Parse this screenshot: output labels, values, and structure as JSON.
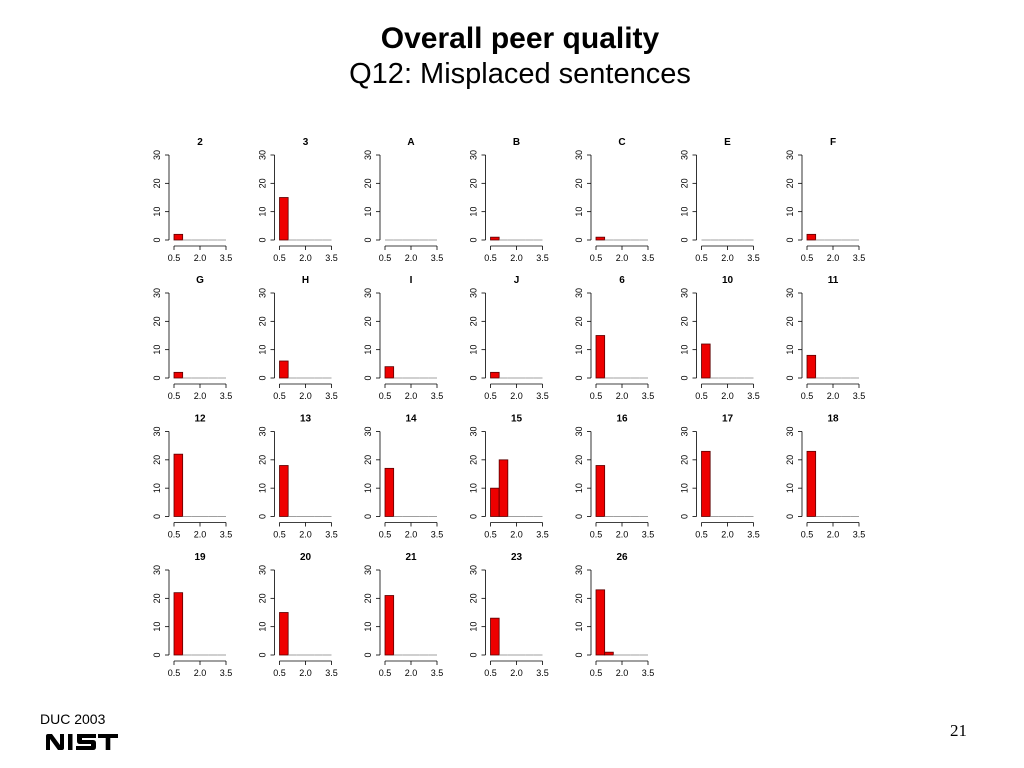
{
  "title": "Overall peer quality",
  "subtitle": "Q12: Misplaced sentences",
  "footer": {
    "left": "DUC 2003",
    "page": "21"
  },
  "colors": {
    "bar": "#ee0000",
    "bar_edge": "#5a0000",
    "axis": "#000000",
    "baseline": "#888888"
  },
  "chart_data": [
    {
      "type": "bar",
      "title": "2",
      "x_ticks": [
        "0.5",
        "2.0",
        "3.5"
      ],
      "y_ticks": [
        "0",
        "10",
        "20",
        "30"
      ],
      "xlim": [
        0.5,
        3.5
      ],
      "ylim": [
        0,
        30
      ],
      "bins": [
        [
          0.5,
          1.0
        ],
        [
          1.0,
          1.5
        ],
        [
          1.5,
          2.0
        ],
        [
          2.0,
          2.5
        ],
        [
          2.5,
          3.0
        ],
        [
          3.0,
          3.5
        ]
      ],
      "values": [
        2,
        0,
        0,
        0,
        0,
        0
      ]
    },
    {
      "type": "bar",
      "title": "3",
      "x_ticks": [
        "0.5",
        "2.0",
        "3.5"
      ],
      "y_ticks": [
        "0",
        "10",
        "20",
        "30"
      ],
      "xlim": [
        0.5,
        3.5
      ],
      "ylim": [
        0,
        30
      ],
      "bins": [
        [
          0.5,
          1.0
        ],
        [
          1.0,
          1.5
        ],
        [
          1.5,
          2.0
        ],
        [
          2.0,
          2.5
        ],
        [
          2.5,
          3.0
        ],
        [
          3.0,
          3.5
        ]
      ],
      "values": [
        15,
        0,
        0,
        0,
        0,
        0
      ]
    },
    {
      "type": "bar",
      "title": "A",
      "x_ticks": [
        "0.5",
        "2.0",
        "3.5"
      ],
      "y_ticks": [
        "0",
        "10",
        "20",
        "30"
      ],
      "xlim": [
        0.5,
        3.5
      ],
      "ylim": [
        0,
        30
      ],
      "bins": [
        [
          0.5,
          1.0
        ],
        [
          1.0,
          1.5
        ],
        [
          1.5,
          2.0
        ],
        [
          2.0,
          2.5
        ],
        [
          2.5,
          3.0
        ],
        [
          3.0,
          3.5
        ]
      ],
      "values": [
        0,
        0,
        0,
        0,
        0,
        0
      ]
    },
    {
      "type": "bar",
      "title": "B",
      "x_ticks": [
        "0.5",
        "2.0",
        "3.5"
      ],
      "y_ticks": [
        "0",
        "10",
        "20",
        "30"
      ],
      "xlim": [
        0.5,
        3.5
      ],
      "ylim": [
        0,
        30
      ],
      "bins": [
        [
          0.5,
          1.0
        ],
        [
          1.0,
          1.5
        ],
        [
          1.5,
          2.0
        ],
        [
          2.0,
          2.5
        ],
        [
          2.5,
          3.0
        ],
        [
          3.0,
          3.5
        ]
      ],
      "values": [
        1,
        0,
        0,
        0,
        0,
        0
      ]
    },
    {
      "type": "bar",
      "title": "C",
      "x_ticks": [
        "0.5",
        "2.0",
        "3.5"
      ],
      "y_ticks": [
        "0",
        "10",
        "20",
        "30"
      ],
      "xlim": [
        0.5,
        3.5
      ],
      "ylim": [
        0,
        30
      ],
      "bins": [
        [
          0.5,
          1.0
        ],
        [
          1.0,
          1.5
        ],
        [
          1.5,
          2.0
        ],
        [
          2.0,
          2.5
        ],
        [
          2.5,
          3.0
        ],
        [
          3.0,
          3.5
        ]
      ],
      "values": [
        1,
        0,
        0,
        0,
        0,
        0
      ]
    },
    {
      "type": "bar",
      "title": "E",
      "x_ticks": [
        "0.5",
        "2.0",
        "3.5"
      ],
      "y_ticks": [
        "0",
        "10",
        "20",
        "30"
      ],
      "xlim": [
        0.5,
        3.5
      ],
      "ylim": [
        0,
        30
      ],
      "bins": [
        [
          0.5,
          1.0
        ],
        [
          1.0,
          1.5
        ],
        [
          1.5,
          2.0
        ],
        [
          2.0,
          2.5
        ],
        [
          2.5,
          3.0
        ],
        [
          3.0,
          3.5
        ]
      ],
      "values": [
        0,
        0,
        0,
        0,
        0,
        0
      ]
    },
    {
      "type": "bar",
      "title": "F",
      "x_ticks": [
        "0.5",
        "2.0",
        "3.5"
      ],
      "y_ticks": [
        "0",
        "10",
        "20",
        "30"
      ],
      "xlim": [
        0.5,
        3.5
      ],
      "ylim": [
        0,
        30
      ],
      "bins": [
        [
          0.5,
          1.0
        ],
        [
          1.0,
          1.5
        ],
        [
          1.5,
          2.0
        ],
        [
          2.0,
          2.5
        ],
        [
          2.5,
          3.0
        ],
        [
          3.0,
          3.5
        ]
      ],
      "values": [
        2,
        0,
        0,
        0,
        0,
        0
      ]
    },
    {
      "type": "bar",
      "title": "G",
      "x_ticks": [
        "0.5",
        "2.0",
        "3.5"
      ],
      "y_ticks": [
        "0",
        "10",
        "20",
        "30"
      ],
      "xlim": [
        0.5,
        3.5
      ],
      "ylim": [
        0,
        30
      ],
      "bins": [
        [
          0.5,
          1.0
        ],
        [
          1.0,
          1.5
        ],
        [
          1.5,
          2.0
        ],
        [
          2.0,
          2.5
        ],
        [
          2.5,
          3.0
        ],
        [
          3.0,
          3.5
        ]
      ],
      "values": [
        2,
        0,
        0,
        0,
        0,
        0
      ]
    },
    {
      "type": "bar",
      "title": "H",
      "x_ticks": [
        "0.5",
        "2.0",
        "3.5"
      ],
      "y_ticks": [
        "0",
        "10",
        "20",
        "30"
      ],
      "xlim": [
        0.5,
        3.5
      ],
      "ylim": [
        0,
        30
      ],
      "bins": [
        [
          0.5,
          1.0
        ],
        [
          1.0,
          1.5
        ],
        [
          1.5,
          2.0
        ],
        [
          2.0,
          2.5
        ],
        [
          2.5,
          3.0
        ],
        [
          3.0,
          3.5
        ]
      ],
      "values": [
        6,
        0,
        0,
        0,
        0,
        0
      ]
    },
    {
      "type": "bar",
      "title": "I",
      "x_ticks": [
        "0.5",
        "2.0",
        "3.5"
      ],
      "y_ticks": [
        "0",
        "10",
        "20",
        "30"
      ],
      "xlim": [
        0.5,
        3.5
      ],
      "ylim": [
        0,
        30
      ],
      "bins": [
        [
          0.5,
          1.0
        ],
        [
          1.0,
          1.5
        ],
        [
          1.5,
          2.0
        ],
        [
          2.0,
          2.5
        ],
        [
          2.5,
          3.0
        ],
        [
          3.0,
          3.5
        ]
      ],
      "values": [
        4,
        0,
        0,
        0,
        0,
        0
      ]
    },
    {
      "type": "bar",
      "title": "J",
      "x_ticks": [
        "0.5",
        "2.0",
        "3.5"
      ],
      "y_ticks": [
        "0",
        "10",
        "20",
        "30"
      ],
      "xlim": [
        0.5,
        3.5
      ],
      "ylim": [
        0,
        30
      ],
      "bins": [
        [
          0.5,
          1.0
        ],
        [
          1.0,
          1.5
        ],
        [
          1.5,
          2.0
        ],
        [
          2.0,
          2.5
        ],
        [
          2.5,
          3.0
        ],
        [
          3.0,
          3.5
        ]
      ],
      "values": [
        2,
        0,
        0,
        0,
        0,
        0
      ]
    },
    {
      "type": "bar",
      "title": "6",
      "x_ticks": [
        "0.5",
        "2.0",
        "3.5"
      ],
      "y_ticks": [
        "0",
        "10",
        "20",
        "30"
      ],
      "xlim": [
        0.5,
        3.5
      ],
      "ylim": [
        0,
        30
      ],
      "bins": [
        [
          0.5,
          1.0
        ],
        [
          1.0,
          1.5
        ],
        [
          1.5,
          2.0
        ],
        [
          2.0,
          2.5
        ],
        [
          2.5,
          3.0
        ],
        [
          3.0,
          3.5
        ]
      ],
      "values": [
        15,
        0,
        0,
        0,
        0,
        0
      ]
    },
    {
      "type": "bar",
      "title": "10",
      "x_ticks": [
        "0.5",
        "2.0",
        "3.5"
      ],
      "y_ticks": [
        "0",
        "10",
        "20",
        "30"
      ],
      "xlim": [
        0.5,
        3.5
      ],
      "ylim": [
        0,
        30
      ],
      "bins": [
        [
          0.5,
          1.0
        ],
        [
          1.0,
          1.5
        ],
        [
          1.5,
          2.0
        ],
        [
          2.0,
          2.5
        ],
        [
          2.5,
          3.0
        ],
        [
          3.0,
          3.5
        ]
      ],
      "values": [
        12,
        0,
        0,
        0,
        0,
        0
      ]
    },
    {
      "type": "bar",
      "title": "11",
      "x_ticks": [
        "0.5",
        "2.0",
        "3.5"
      ],
      "y_ticks": [
        "0",
        "10",
        "20",
        "30"
      ],
      "xlim": [
        0.5,
        3.5
      ],
      "ylim": [
        0,
        30
      ],
      "bins": [
        [
          0.5,
          1.0
        ],
        [
          1.0,
          1.5
        ],
        [
          1.5,
          2.0
        ],
        [
          2.0,
          2.5
        ],
        [
          2.5,
          3.0
        ],
        [
          3.0,
          3.5
        ]
      ],
      "values": [
        8,
        0,
        0,
        0,
        0,
        0
      ]
    },
    {
      "type": "bar",
      "title": "12",
      "x_ticks": [
        "0.5",
        "2.0",
        "3.5"
      ],
      "y_ticks": [
        "0",
        "10",
        "20",
        "30"
      ],
      "xlim": [
        0.5,
        3.5
      ],
      "ylim": [
        0,
        30
      ],
      "bins": [
        [
          0.5,
          1.0
        ],
        [
          1.0,
          1.5
        ],
        [
          1.5,
          2.0
        ],
        [
          2.0,
          2.5
        ],
        [
          2.5,
          3.0
        ],
        [
          3.0,
          3.5
        ]
      ],
      "values": [
        22,
        0,
        0,
        0,
        0,
        0
      ]
    },
    {
      "type": "bar",
      "title": "13",
      "x_ticks": [
        "0.5",
        "2.0",
        "3.5"
      ],
      "y_ticks": [
        "0",
        "10",
        "20",
        "30"
      ],
      "xlim": [
        0.5,
        3.5
      ],
      "ylim": [
        0,
        30
      ],
      "bins": [
        [
          0.5,
          1.0
        ],
        [
          1.0,
          1.5
        ],
        [
          1.5,
          2.0
        ],
        [
          2.0,
          2.5
        ],
        [
          2.5,
          3.0
        ],
        [
          3.0,
          3.5
        ]
      ],
      "values": [
        18,
        0,
        0,
        0,
        0,
        0
      ]
    },
    {
      "type": "bar",
      "title": "14",
      "x_ticks": [
        "0.5",
        "2.0",
        "3.5"
      ],
      "y_ticks": [
        "0",
        "10",
        "20",
        "30"
      ],
      "xlim": [
        0.5,
        3.5
      ],
      "ylim": [
        0,
        30
      ],
      "bins": [
        [
          0.5,
          1.0
        ],
        [
          1.0,
          1.5
        ],
        [
          1.5,
          2.0
        ],
        [
          2.0,
          2.5
        ],
        [
          2.5,
          3.0
        ],
        [
          3.0,
          3.5
        ]
      ],
      "values": [
        17,
        0,
        0,
        0,
        0,
        0
      ]
    },
    {
      "type": "bar",
      "title": "15",
      "x_ticks": [
        "0.5",
        "2.0",
        "3.5"
      ],
      "y_ticks": [
        "0",
        "10",
        "20",
        "30"
      ],
      "xlim": [
        0.5,
        3.5
      ],
      "ylim": [
        0,
        30
      ],
      "bins": [
        [
          0.5,
          1.0
        ],
        [
          1.0,
          1.5
        ],
        [
          1.5,
          2.0
        ],
        [
          2.0,
          2.5
        ],
        [
          2.5,
          3.0
        ],
        [
          3.0,
          3.5
        ]
      ],
      "values": [
        10,
        20,
        0,
        0,
        0,
        0
      ]
    },
    {
      "type": "bar",
      "title": "16",
      "x_ticks": [
        "0.5",
        "2.0",
        "3.5"
      ],
      "y_ticks": [
        "0",
        "10",
        "20",
        "30"
      ],
      "xlim": [
        0.5,
        3.5
      ],
      "ylim": [
        0,
        30
      ],
      "bins": [
        [
          0.5,
          1.0
        ],
        [
          1.0,
          1.5
        ],
        [
          1.5,
          2.0
        ],
        [
          2.0,
          2.5
        ],
        [
          2.5,
          3.0
        ],
        [
          3.0,
          3.5
        ]
      ],
      "values": [
        18,
        0,
        0,
        0,
        0,
        0
      ]
    },
    {
      "type": "bar",
      "title": "17",
      "x_ticks": [
        "0.5",
        "2.0",
        "3.5"
      ],
      "y_ticks": [
        "0",
        "10",
        "20",
        "30"
      ],
      "xlim": [
        0.5,
        3.5
      ],
      "ylim": [
        0,
        30
      ],
      "bins": [
        [
          0.5,
          1.0
        ],
        [
          1.0,
          1.5
        ],
        [
          1.5,
          2.0
        ],
        [
          2.0,
          2.5
        ],
        [
          2.5,
          3.0
        ],
        [
          3.0,
          3.5
        ]
      ],
      "values": [
        23,
        0,
        0,
        0,
        0,
        0
      ]
    },
    {
      "type": "bar",
      "title": "18",
      "x_ticks": [
        "0.5",
        "2.0",
        "3.5"
      ],
      "y_ticks": [
        "0",
        "10",
        "20",
        "30"
      ],
      "xlim": [
        0.5,
        3.5
      ],
      "ylim": [
        0,
        30
      ],
      "bins": [
        [
          0.5,
          1.0
        ],
        [
          1.0,
          1.5
        ],
        [
          1.5,
          2.0
        ],
        [
          2.0,
          2.5
        ],
        [
          2.5,
          3.0
        ],
        [
          3.0,
          3.5
        ]
      ],
      "values": [
        23,
        0,
        0,
        0,
        0,
        0
      ]
    },
    {
      "type": "bar",
      "title": "19",
      "x_ticks": [
        "0.5",
        "2.0",
        "3.5"
      ],
      "y_ticks": [
        "0",
        "10",
        "20",
        "30"
      ],
      "xlim": [
        0.5,
        3.5
      ],
      "ylim": [
        0,
        30
      ],
      "bins": [
        [
          0.5,
          1.0
        ],
        [
          1.0,
          1.5
        ],
        [
          1.5,
          2.0
        ],
        [
          2.0,
          2.5
        ],
        [
          2.5,
          3.0
        ],
        [
          3.0,
          3.5
        ]
      ],
      "values": [
        22,
        0,
        0,
        0,
        0,
        0
      ]
    },
    {
      "type": "bar",
      "title": "20",
      "x_ticks": [
        "0.5",
        "2.0",
        "3.5"
      ],
      "y_ticks": [
        "0",
        "10",
        "20",
        "30"
      ],
      "xlim": [
        0.5,
        3.5
      ],
      "ylim": [
        0,
        30
      ],
      "bins": [
        [
          0.5,
          1.0
        ],
        [
          1.0,
          1.5
        ],
        [
          1.5,
          2.0
        ],
        [
          2.0,
          2.5
        ],
        [
          2.5,
          3.0
        ],
        [
          3.0,
          3.5
        ]
      ],
      "values": [
        15,
        0,
        0,
        0,
        0,
        0
      ]
    },
    {
      "type": "bar",
      "title": "21",
      "x_ticks": [
        "0.5",
        "2.0",
        "3.5"
      ],
      "y_ticks": [
        "0",
        "10",
        "20",
        "30"
      ],
      "xlim": [
        0.5,
        3.5
      ],
      "ylim": [
        0,
        30
      ],
      "bins": [
        [
          0.5,
          1.0
        ],
        [
          1.0,
          1.5
        ],
        [
          1.5,
          2.0
        ],
        [
          2.0,
          2.5
        ],
        [
          2.5,
          3.0
        ],
        [
          3.0,
          3.5
        ]
      ],
      "values": [
        21,
        0,
        0,
        0,
        0,
        0
      ]
    },
    {
      "type": "bar",
      "title": "23",
      "x_ticks": [
        "0.5",
        "2.0",
        "3.5"
      ],
      "y_ticks": [
        "0",
        "10",
        "20",
        "30"
      ],
      "xlim": [
        0.5,
        3.5
      ],
      "ylim": [
        0,
        30
      ],
      "bins": [
        [
          0.5,
          1.0
        ],
        [
          1.0,
          1.5
        ],
        [
          1.5,
          2.0
        ],
        [
          2.0,
          2.5
        ],
        [
          2.5,
          3.0
        ],
        [
          3.0,
          3.5
        ]
      ],
      "values": [
        13,
        0,
        0,
        0,
        0,
        0
      ]
    },
    {
      "type": "bar",
      "title": "26",
      "x_ticks": [
        "0.5",
        "2.0",
        "3.5"
      ],
      "y_ticks": [
        "0",
        "10",
        "20",
        "30"
      ],
      "xlim": [
        0.5,
        3.5
      ],
      "ylim": [
        0,
        30
      ],
      "bins": [
        [
          0.5,
          1.0
        ],
        [
          1.0,
          1.5
        ],
        [
          1.5,
          2.0
        ],
        [
          2.0,
          2.5
        ],
        [
          2.5,
          3.0
        ],
        [
          3.0,
          3.5
        ]
      ],
      "values": [
        23,
        1,
        0,
        0,
        0,
        0
      ]
    }
  ]
}
